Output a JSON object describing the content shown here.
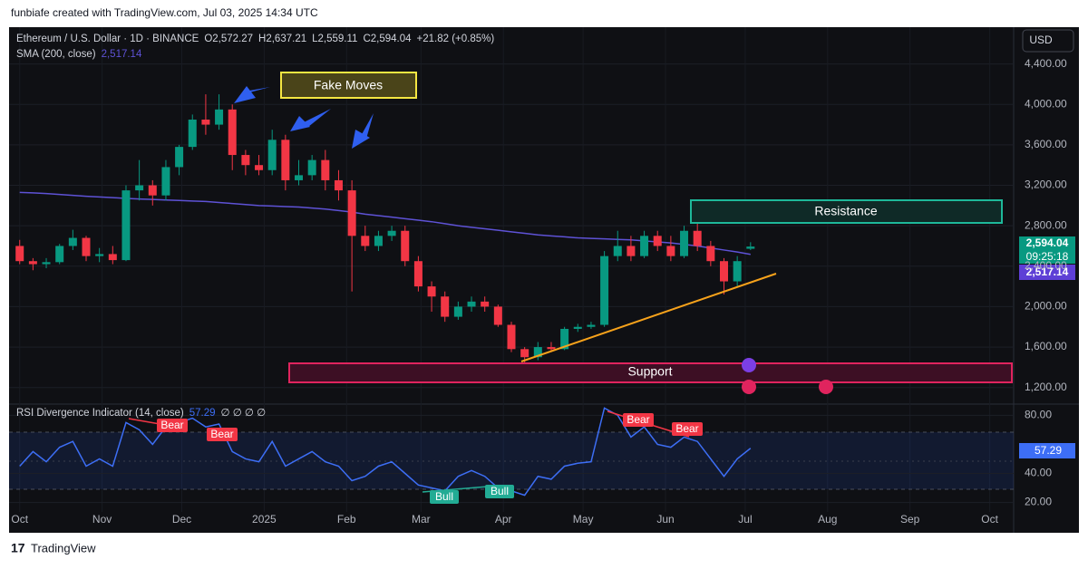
{
  "header": {
    "credit": "funbiafe created with TradingView.com, Jul 03, 2025 14:34 UTC",
    "symbol": "Ethereum / U.S. Dollar · 1D · BINANCE",
    "o_label": "O",
    "open": "2,572.27",
    "h_label": "H",
    "high": "2,637.21",
    "l_label": "L",
    "low": "2,559.11",
    "c_label": "C",
    "close": "2,594.04",
    "change": "+21.82 (+0.85%)",
    "sma_label": "SMA (200, close)",
    "sma_value": "2,517.14",
    "currency": "USD",
    "price_tag": "2,594.04",
    "countdown": "09:25:18",
    "sma_tag": "2,517.14",
    "rsi_label": "RSI Divergence Indicator (14, close)",
    "rsi_value": "57.29",
    "rsi_flags": "∅ ∅ ∅ ∅",
    "rsi_tag": "57.29"
  },
  "annotations": {
    "fake_moves": "Fake Moves",
    "resistance": "Resistance",
    "support": "Support",
    "bear": "Bear",
    "bull": "Bull"
  },
  "footer": {
    "brand": "TradingView"
  },
  "chart_data": [
    {
      "type": "candlestick",
      "up_color": "#089981",
      "down_color": "#f23645",
      "x": [
        0,
        5,
        10,
        15,
        20,
        25,
        30,
        35,
        40,
        45,
        50,
        55,
        60,
        65,
        70,
        75,
        80,
        85,
        90,
        95,
        100,
        105,
        110,
        115,
        120,
        125,
        130,
        135,
        140,
        145,
        150,
        155,
        160,
        165,
        170,
        175,
        180,
        185,
        190,
        195,
        200,
        205,
        210,
        215,
        220,
        225,
        230,
        235,
        240,
        245,
        250,
        255,
        260,
        265,
        270,
        275
      ],
      "open": [
        2600,
        2450,
        2420,
        2440,
        2600,
        2680,
        2500,
        2520,
        2460,
        3150,
        3200,
        3100,
        3380,
        3580,
        3850,
        3800,
        3950,
        3500,
        3400,
        3350,
        3650,
        3250,
        3300,
        3450,
        3250,
        3150,
        2700,
        2600,
        2700,
        2750,
        2450,
        2200,
        2100,
        1900,
        2000,
        2050,
        2000,
        1820,
        1580,
        1500,
        1600,
        1580,
        1780,
        1800,
        1820,
        2500,
        2600,
        2500,
        2700,
        2600,
        2500,
        2750,
        2600,
        2450,
        2250,
        2572.27
      ],
      "high": [
        2660,
        2480,
        2480,
        2620,
        2760,
        2700,
        2580,
        2600,
        3200,
        3450,
        3250,
        3450,
        3600,
        3900,
        4100,
        4100,
        4000,
        3550,
        3500,
        3750,
        3700,
        3450,
        3500,
        3550,
        3350,
        3250,
        2800,
        2750,
        2800,
        2800,
        2500,
        2250,
        2150,
        2050,
        2100,
        2100,
        2020,
        1850,
        1600,
        1650,
        1650,
        1800,
        1830,
        1850,
        2550,
        2750,
        2700,
        2750,
        2750,
        2700,
        2800,
        2880,
        2650,
        2480,
        2500,
        2637.21
      ],
      "low": [
        2420,
        2360,
        2380,
        2420,
        2560,
        2450,
        2440,
        2420,
        2450,
        3050,
        3000,
        3050,
        3300,
        3550,
        3700,
        3750,
        3350,
        3300,
        3300,
        3300,
        3150,
        3200,
        3250,
        3150,
        3050,
        2150,
        2550,
        2550,
        2650,
        2400,
        2150,
        1950,
        1850,
        1870,
        1950,
        1950,
        1800,
        1550,
        1390,
        1470,
        1550,
        1570,
        1750,
        1780,
        1800,
        2450,
        2450,
        2480,
        2550,
        2450,
        2480,
        2550,
        2400,
        2120,
        2200,
        2559.11
      ],
      "close": [
        2450,
        2420,
        2440,
        2600,
        2680,
        2500,
        2520,
        2460,
        3150,
        3200,
        3100,
        3380,
        3580,
        3850,
        3800,
        3950,
        3500,
        3400,
        3350,
        3650,
        3250,
        3300,
        3450,
        3250,
        3150,
        2700,
        2600,
        2700,
        2750,
        2450,
        2200,
        2100,
        1900,
        2000,
        2050,
        2000,
        1820,
        1580,
        1500,
        1600,
        1580,
        1780,
        1800,
        1820,
        2500,
        2600,
        2500,
        2700,
        2600,
        2500,
        2750,
        2600,
        2450,
        2250,
        2450,
        2594.04
      ],
      "series": [
        {
          "name": "SMA (200, close)",
          "color": "#5e52d6",
          "values": [
            3130,
            3125,
            3118,
            3110,
            3100,
            3092,
            3085,
            3078,
            3070,
            3065,
            3060,
            3055,
            3050,
            3045,
            3040,
            3030,
            3020,
            3010,
            3000,
            2995,
            2990,
            2985,
            2975,
            2965,
            2950,
            2935,
            2915,
            2900,
            2885,
            2870,
            2855,
            2840,
            2820,
            2800,
            2785,
            2770,
            2755,
            2740,
            2725,
            2710,
            2700,
            2690,
            2680,
            2675,
            2670,
            2665,
            2660,
            2650,
            2640,
            2630,
            2615,
            2600,
            2580,
            2560,
            2540,
            2517.14
          ]
        }
      ],
      "xlim": [
        -4,
        374
      ],
      "ylim": [
        1036,
        4764
      ],
      "xticks": [
        {
          "value": 0,
          "label": "Oct"
        },
        {
          "value": 31,
          "label": "Nov"
        },
        {
          "value": 61,
          "label": "Dec"
        },
        {
          "value": 92,
          "label": "2025"
        },
        {
          "value": 123,
          "label": "Feb"
        },
        {
          "value": 151,
          "label": "Mar"
        },
        {
          "value": 182,
          "label": "Apr"
        },
        {
          "value": 212,
          "label": "May"
        },
        {
          "value": 243,
          "label": "Jun"
        },
        {
          "value": 273,
          "label": "Jul"
        },
        {
          "value": 304,
          "label": "Aug"
        },
        {
          "value": 335,
          "label": "Sep"
        },
        {
          "value": 365,
          "label": "Oct"
        }
      ],
      "yticks": [
        {
          "value": 1200,
          "label": "1,200.00"
        },
        {
          "value": 1600,
          "label": "1,600.00"
        },
        {
          "value": 2000,
          "label": "2,000.00"
        },
        {
          "value": 2400,
          "label": "2,400.00"
        },
        {
          "value": 2800,
          "label": "2,800.00"
        },
        {
          "value": 3200,
          "label": "3,200.00"
        },
        {
          "value": 3600,
          "label": "3,600.00"
        },
        {
          "value": 4000,
          "label": "4,000.00"
        },
        {
          "value": 4400,
          "label": "4,400.00"
        }
      ]
    },
    {
      "type": "line",
      "color": "#3d6ef5",
      "x": [
        0,
        5,
        10,
        15,
        20,
        25,
        30,
        35,
        40,
        45,
        50,
        55,
        60,
        65,
        70,
        75,
        80,
        85,
        90,
        95,
        100,
        105,
        110,
        115,
        120,
        125,
        130,
        135,
        140,
        145,
        150,
        155,
        160,
        165,
        170,
        175,
        180,
        185,
        190,
        195,
        200,
        205,
        210,
        215,
        220,
        225,
        230,
        235,
        240,
        245,
        250,
        255,
        260,
        265,
        270,
        275
      ],
      "values": [
        45,
        55,
        48,
        58,
        62,
        45,
        50,
        45,
        75,
        70,
        60,
        72,
        75,
        78,
        72,
        74,
        55,
        50,
        48,
        62,
        45,
        50,
        55,
        48,
        45,
        35,
        38,
        45,
        48,
        40,
        32,
        30,
        28,
        38,
        42,
        38,
        30,
        28,
        25,
        38,
        36,
        45,
        47,
        48,
        85,
        80,
        65,
        72,
        60,
        58,
        65,
        62,
        50,
        38,
        50,
        57.29
      ],
      "xlim": [
        -4,
        374
      ],
      "ylim": [
        13.5,
        87.7
      ],
      "yticks": [
        {
          "value": 20,
          "label": "20.00"
        },
        {
          "value": 40,
          "label": "40.00"
        },
        {
          "value": 80,
          "label": "80.00"
        }
      ]
    }
  ]
}
